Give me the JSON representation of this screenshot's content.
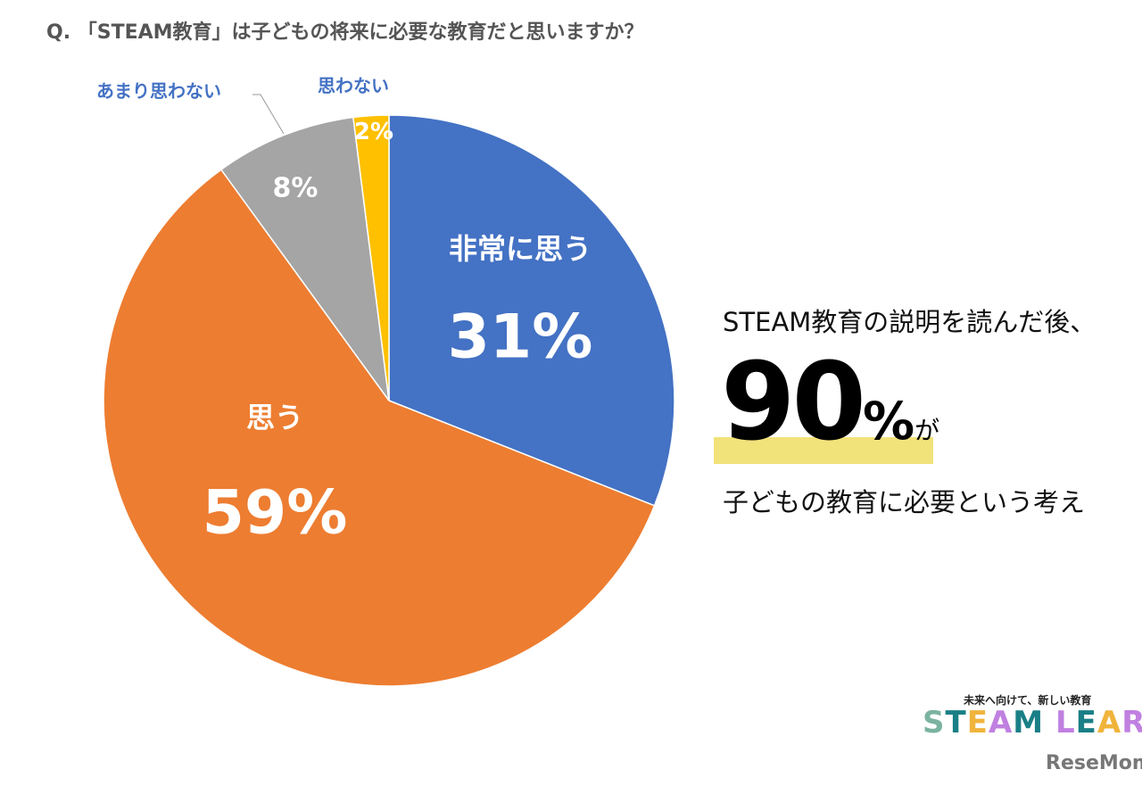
{
  "chart_data": {
    "type": "pie",
    "title": "Q. 「STEAM教育」は子どもの将来に必要な教育だと思いますか？",
    "start_angle": "12 o'clock, clockwise",
    "slices": [
      {
        "label": "非常に思う",
        "value": 31,
        "value_label": "31%",
        "color": "#4472c4"
      },
      {
        "label": "思う",
        "value": 59,
        "value_label": "59%",
        "color": "#ed7d31"
      },
      {
        "label": "あまり思わない",
        "value": 8,
        "value_label": "8%",
        "color": "#a5a5a5"
      },
      {
        "label": "思わない",
        "value": 2,
        "value_label": "2%",
        "color": "#ffc000"
      }
    ]
  },
  "callout": {
    "line1": "STEAM教育の説明を読んだ後、",
    "number": "90",
    "percent": "%",
    "particle": "が",
    "line3": "子どもの教育に必要という考え"
  },
  "logo": {
    "tagline": "未来へ向けて、新しい教育",
    "brand": "STEAM LEARN",
    "credit": "ReseMom"
  }
}
